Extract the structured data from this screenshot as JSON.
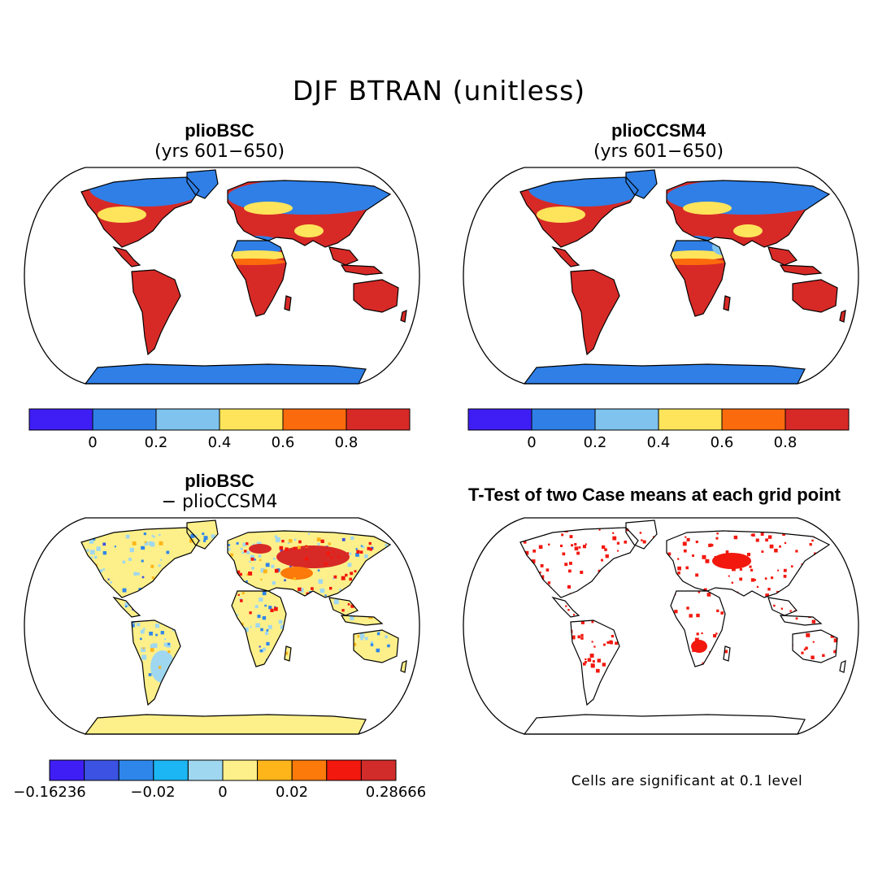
{
  "title": "DJF BTRAN (unitless)",
  "panels": [
    {
      "id": "plioBSC",
      "title": "plioBSC",
      "subtitle": "(yrs 601−650)"
    },
    {
      "id": "plioCCSM4",
      "title": "plioCCSM4",
      "subtitle": "(yrs 601−650)"
    },
    {
      "id": "diff",
      "title": "plioBSC",
      "subtitle": "− plioCCSM4"
    },
    {
      "id": "ttest",
      "title": "T-Test of two Case means at each grid point",
      "subtitle": ""
    }
  ],
  "colorbar_abs": {
    "colors": [
      "#3f1ef5",
      "#2f7fe6",
      "#7fc3ee",
      "#fde45a",
      "#fb6a0c",
      "#d72a27"
    ],
    "labels": [
      "0",
      "0.2",
      "0.4",
      "0.6",
      "0.8"
    ]
  },
  "colorbar_diff": {
    "colors": [
      "#3f1ef5",
      "#3b52e3",
      "#2f86ea",
      "#1bb6f3",
      "#9fd7f0",
      "#fdf08a",
      "#fdb51a",
      "#fb7a0a",
      "#f2180e",
      "#d12c29"
    ],
    "labels": [
      "−0.16236",
      "−0.02",
      "0",
      "0.02",
      "0.28666"
    ]
  },
  "significance_note": "Cells are significant at 0.1 level",
  "colors": {
    "ocean": "#ffffff",
    "wet": "#2f7fe6",
    "dry": "#d72a27",
    "mid": "#fde45a",
    "diff_base": "#fdf08a",
    "significant": "#f2180e"
  }
}
